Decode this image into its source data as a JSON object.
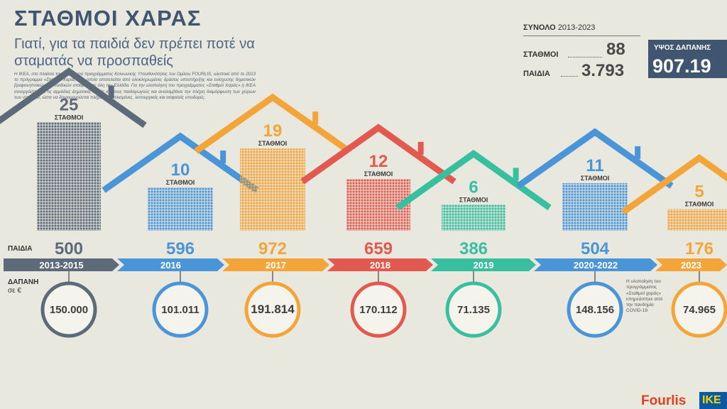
{
  "title": "ΣΤΑΘΜΟΙ ΧΑΡΑΣ",
  "subtitle": "Γιατί, για τα παιδιά δεν πρέπει ποτέ να σταματάς να προσπαθείς",
  "intro": "Η ΙΚΕΑ, στο πλαίσιο του συνολικού προγράμματος Κοινωνικής Υπευθυνότητας του Ομίλου FOURLIS, υλοποιεί από το 2013 το πρόγραμμα «Σταθμοί Χαράς», το οποίο αποτελείται από ολοκληρωμένες δράσεις υποστήριξης και ενίσχυσης δημοτικών βρεφονηπιακών και παιδικών σταθμών σε όλη την Ελλάδα. Για την υλοποίηση του προγράμματος «Σταθμοί Χαράς» η ΙΚΕΑ συνεργάζεται με τις αρμόδιες Δημοτικές Αρχές και τους παιδαγωγούς και αναλαμβάνει την πλήρη διαμόρφωση των χώρων των σταθμών, ώστε να δημιουργούνται πλήρως εξοπλισμένες, λειτουργικές και ασφαλείς υποδομές.",
  "totals": {
    "heading": "ΣΥΝΟΛΟ",
    "period": "2013-2023",
    "stations_label": "ΣΤΑΘΜΟΙ",
    "stations_value": "88",
    "children_label": "ΠΑΙΔΙΑ",
    "children_value": "3.793",
    "spend_label": "ΥΨΟΣ ΔΑΠΑΝΗΣ",
    "spend_value": "907.19"
  },
  "labels": {
    "children_row": "ΠΑΙΔΙΑ",
    "spend_row_1": "ΔΑΠΑΝΗ",
    "spend_row_2": "σε €",
    "house_unit": "ΣΤΑΘΜΟΙ",
    "note_2020_2022": "Η υλοποίηση του προγράμματος «Σταθμοί χαράς» επηρεάστηκε από την πανδημία COVID-19"
  },
  "brand": {
    "fourlis": "Fourlis",
    "ikea": "IKE"
  },
  "chart_data": {
    "type": "bar",
    "categories": [
      "2013-2015",
      "2016",
      "2017",
      "2018",
      "2019",
      "2020-2022",
      "2023"
    ],
    "series": [
      {
        "name": "ΣΤΑΘΜΟΙ",
        "values": [
          25,
          10,
          19,
          12,
          6,
          11,
          5
        ]
      },
      {
        "name": "ΠΑΙΔΙΑ",
        "values": [
          500,
          596,
          972,
          659,
          386,
          504,
          176
        ]
      },
      {
        "name": "ΔΑΠΑΝΗ σε €",
        "values": [
          150000,
          101011,
          191814,
          170112,
          71135,
          148156,
          74965
        ]
      }
    ],
    "children_labels": [
      "500",
      "596",
      "972",
      "659",
      "386",
      "504",
      "176"
    ],
    "spend_labels": [
      "150.000",
      "101.011",
      "191.814",
      "170.112",
      "71.135",
      "148.156",
      "74.965"
    ],
    "colors": [
      "#5d6a79",
      "#4a95d8",
      "#f4a53a",
      "#e25a4f",
      "#38bfa0",
      "#4a95d8",
      "#f4a53a"
    ]
  }
}
